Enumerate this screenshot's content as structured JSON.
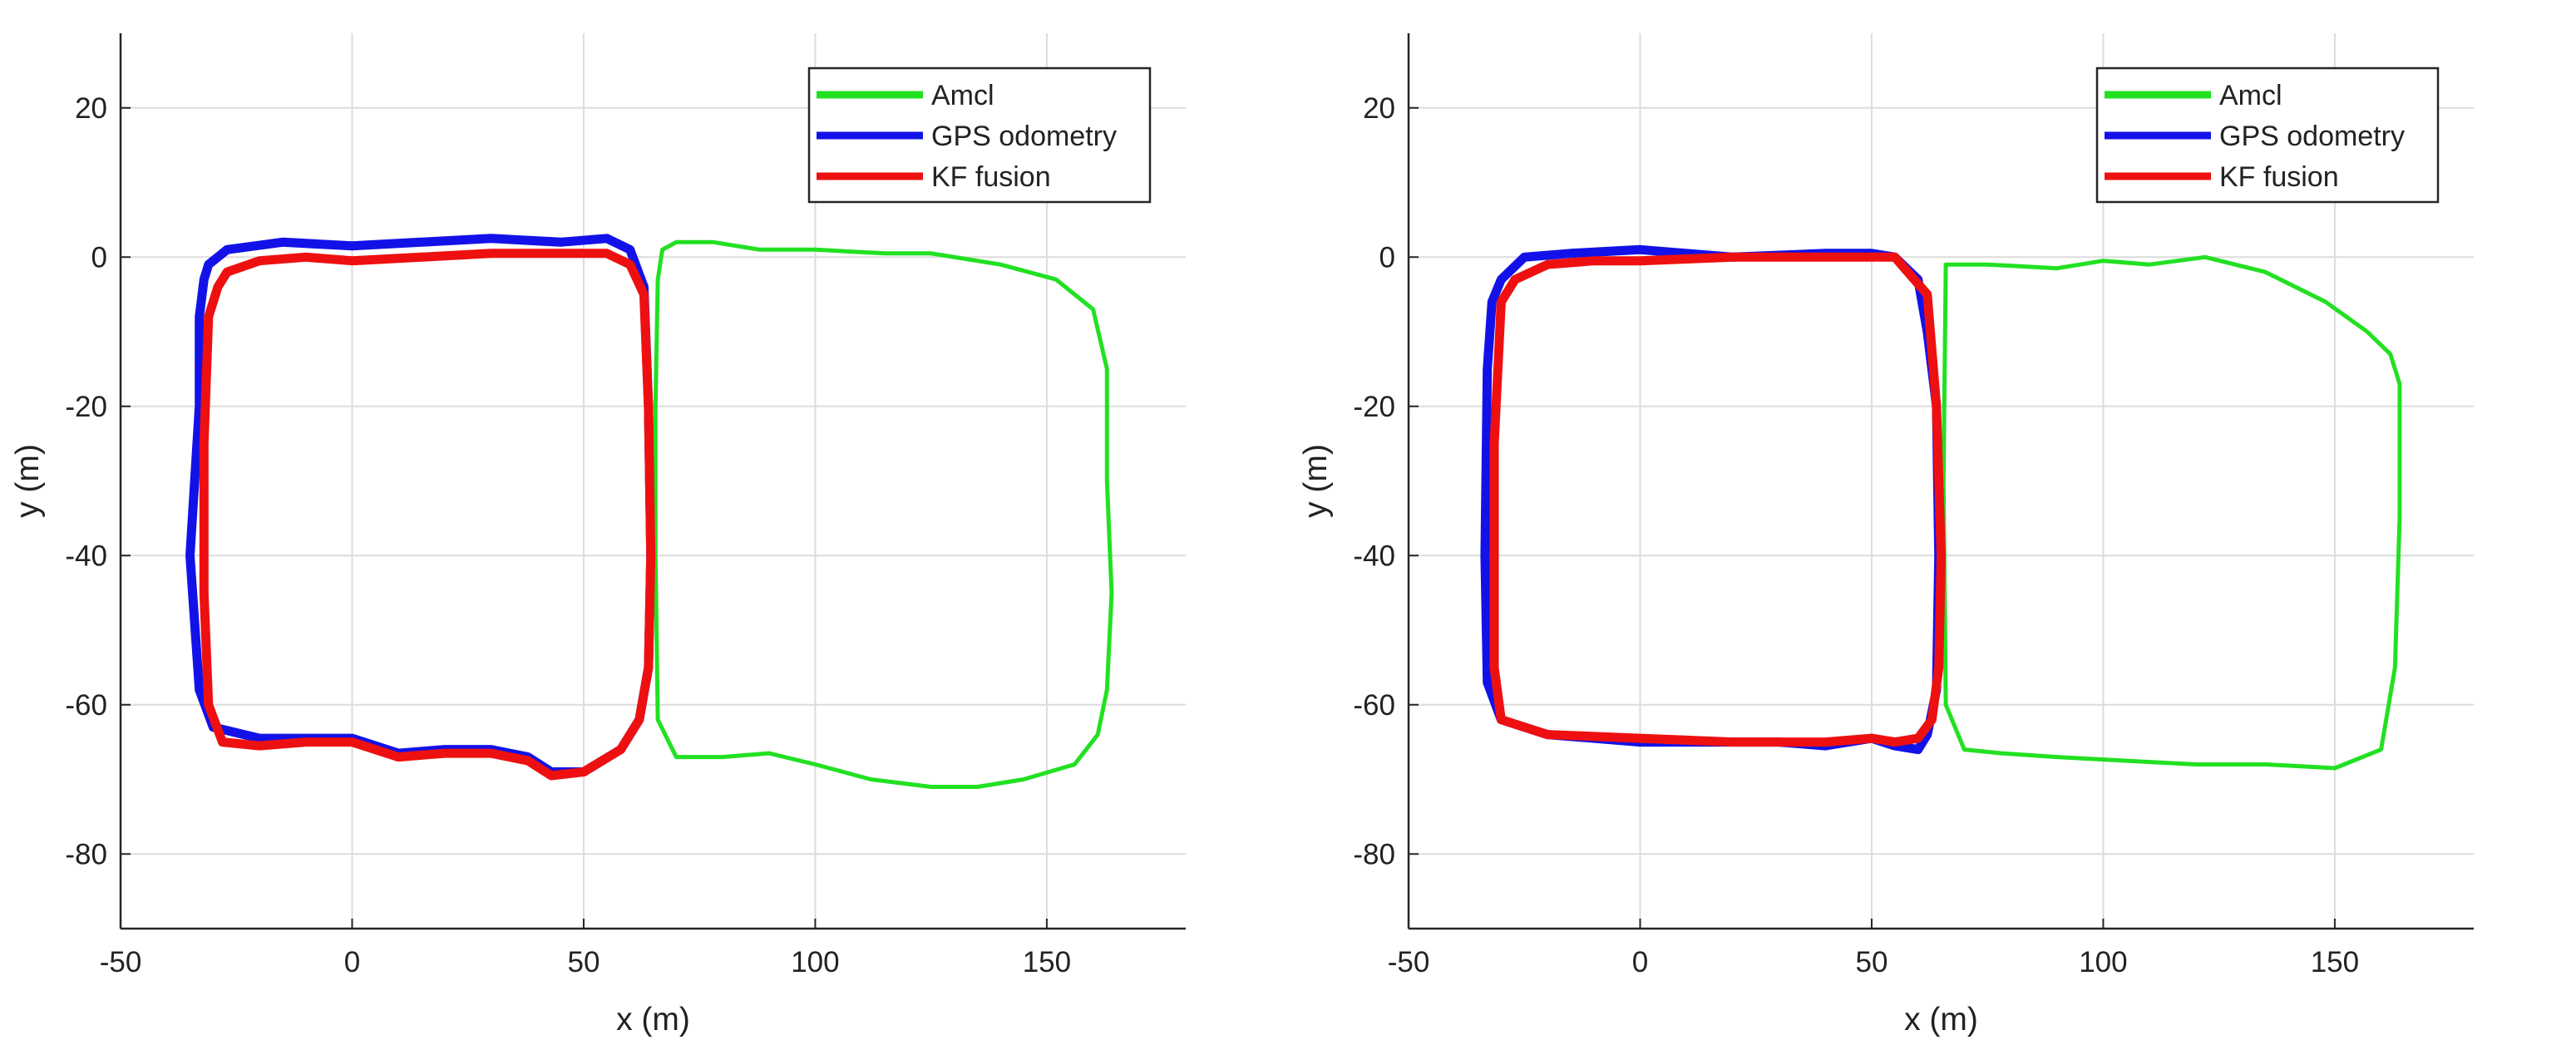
{
  "chart_data": [
    {
      "type": "line",
      "xlabel": "x (m)",
      "ylabel": "y (m)",
      "xlim": [
        -50,
        180
      ],
      "ylim": [
        -90,
        30
      ],
      "xticks": [
        -50,
        0,
        50,
        100,
        150
      ],
      "yticks": [
        20,
        0,
        -20,
        -40,
        -60,
        -80
      ],
      "grid": true,
      "legend_position": "top-right",
      "series": [
        {
          "name": "Amcl",
          "color": "#22e022",
          "x": [
            67,
            70,
            78,
            88,
            100,
            115,
            125,
            140,
            152,
            160,
            163,
            163,
            164,
            163,
            161,
            156,
            145,
            135,
            125,
            112,
            100,
            90,
            80,
            70,
            66,
            65.5,
            65.5,
            66,
            67
          ],
          "y": [
            1,
            2,
            2,
            1,
            1,
            0.5,
            0.5,
            -1,
            -3,
            -7,
            -15,
            -30,
            -45,
            -58,
            -64,
            -68,
            -70,
            -71,
            -71,
            -70,
            -68,
            -66.5,
            -67,
            -67,
            -62,
            -40,
            -20,
            -3,
            1
          ]
        },
        {
          "name": "GPS odometry",
          "color": "#1212e8",
          "x": [
            -32,
            -31,
            -27,
            -15,
            0,
            15,
            30,
            45,
            55,
            60,
            63,
            64,
            64.5,
            64,
            62,
            58,
            50,
            43,
            38,
            30,
            20,
            10,
            0,
            -10,
            -20,
            -30,
            -33,
            -35,
            -33,
            -33,
            -32
          ],
          "y": [
            -3,
            -1,
            1,
            2,
            1.5,
            2,
            2.5,
            2,
            2.5,
            1,
            -4,
            -20,
            -40,
            -55,
            -62,
            -66,
            -69,
            -69,
            -67,
            -66,
            -66,
            -66.5,
            -64.5,
            -64.5,
            -64.5,
            -63,
            -58,
            -40,
            -20,
            -8,
            -3
          ]
        },
        {
          "name": "KF fusion",
          "color": "#ee1010",
          "x": [
            -27,
            -20,
            -10,
            0,
            15,
            30,
            45,
            55,
            60,
            63,
            64,
            64.5,
            64,
            62,
            58,
            50,
            43,
            38,
            30,
            20,
            10,
            0,
            -10,
            -20,
            -28,
            -31,
            -32,
            -32,
            -31,
            -29,
            -27
          ],
          "y": [
            -2,
            -0.5,
            0,
            -0.5,
            0,
            0.5,
            0.5,
            0.5,
            -1,
            -5,
            -20,
            -40,
            -55,
            -62,
            -66,
            -69,
            -69.5,
            -67.5,
            -66.5,
            -66.5,
            -67,
            -65,
            -65,
            -65.5,
            -65,
            -60,
            -45,
            -25,
            -8,
            -4,
            -2
          ]
        }
      ]
    },
    {
      "type": "line",
      "xlabel": "x (m)",
      "ylabel": "y (m)",
      "xlim": [
        -50,
        180
      ],
      "ylim": [
        -90,
        30
      ],
      "xticks": [
        -50,
        0,
        50,
        100,
        150
      ],
      "yticks": [
        20,
        0,
        -20,
        -40,
        -60,
        -80
      ],
      "grid": true,
      "legend_position": "top-right",
      "series": [
        {
          "name": "Amcl",
          "color": "#22e022",
          "x": [
            66,
            75,
            90,
            100,
            110,
            122,
            135,
            148,
            157,
            162,
            164,
            164,
            163,
            160,
            150,
            135,
            120,
            105,
            90,
            78,
            70,
            66,
            65.5,
            66
          ],
          "y": [
            -1,
            -1,
            -1.5,
            -0.5,
            -1,
            0,
            -2,
            -6,
            -10,
            -13,
            -17,
            -35,
            -55,
            -66,
            -68.5,
            -68,
            -68,
            -67.5,
            -67,
            -66.5,
            -66,
            -60,
            -30,
            -1
          ]
        },
        {
          "name": "GPS odometry",
          "color": "#1212e8",
          "x": [
            -30,
            -25,
            -15,
            0,
            10,
            20,
            40,
            50,
            55,
            60,
            62,
            64,
            64.5,
            64,
            62,
            60,
            55,
            50,
            40,
            30,
            20,
            0,
            -20,
            -30,
            -33,
            -33.5,
            -33,
            -32,
            -30
          ],
          "y": [
            -3,
            0,
            0.5,
            1,
            0.5,
            0,
            0.5,
            0.5,
            0,
            -3,
            -10,
            -20,
            -40,
            -58,
            -64,
            -66,
            -65.5,
            -64.5,
            -65.5,
            -65,
            -65,
            -65,
            -64,
            -62,
            -57,
            -40,
            -15,
            -6,
            -3
          ]
        },
        {
          "name": "KF fusion",
          "color": "#ee1010",
          "x": [
            -27,
            -20,
            -10,
            0,
            20,
            40,
            55,
            62,
            64,
            65,
            64.5,
            63,
            60,
            55,
            50,
            40,
            30,
            20,
            0,
            -20,
            -30,
            -31.5,
            -31.5,
            -30,
            -27
          ],
          "y": [
            -3,
            -1,
            -0.5,
            -0.5,
            0,
            0,
            0,
            -5,
            -20,
            -40,
            -55,
            -62,
            -64.5,
            -65,
            -64.5,
            -65,
            -65,
            -65,
            -64.5,
            -64,
            -62,
            -55,
            -25,
            -6,
            -3
          ]
        }
      ]
    }
  ]
}
